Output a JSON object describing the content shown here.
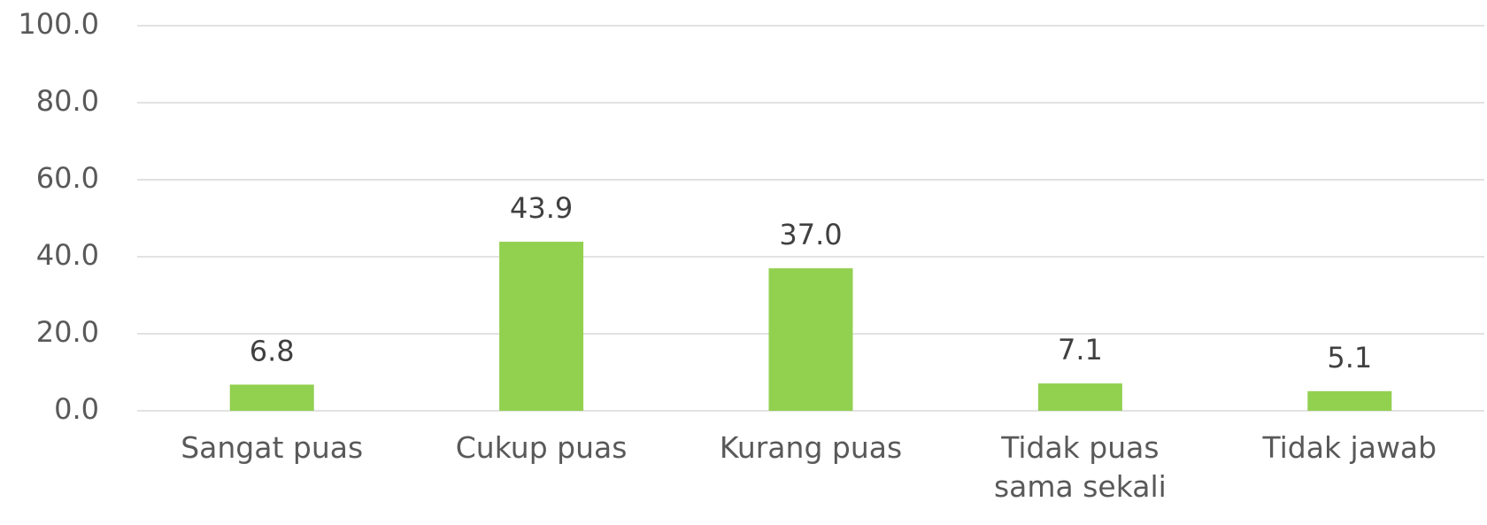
{
  "chart_data": {
    "type": "bar",
    "categories": [
      "Sangat puas",
      "Cukup puas",
      "Kurang puas",
      "Tidak puas sama sekali",
      "Tidak jawab"
    ],
    "values": [
      6.8,
      43.9,
      37.0,
      7.1,
      5.1
    ],
    "value_labels": [
      "6.8",
      "43.9",
      "37.0",
      "7.1",
      "5.1"
    ],
    "color": "#92d050",
    "ylim": [
      0,
      100
    ],
    "yticks": [
      {
        "value": 0,
        "label": "0.0"
      },
      {
        "value": 20,
        "label": "20.0"
      },
      {
        "value": 40,
        "label": "40.0"
      },
      {
        "value": 60,
        "label": "60.0"
      },
      {
        "value": 80,
        "label": "80.0"
      },
      {
        "value": 100,
        "label": "100.0"
      }
    ],
    "grid": true
  }
}
